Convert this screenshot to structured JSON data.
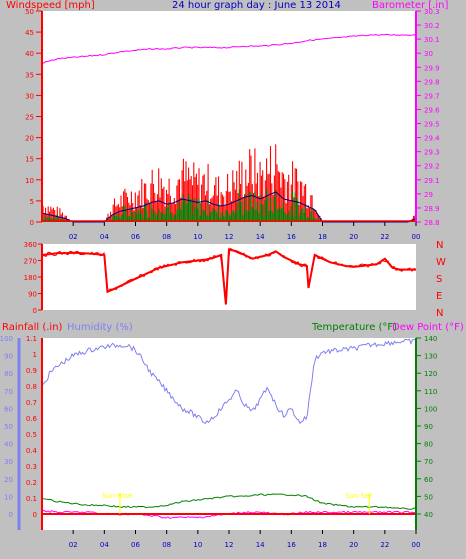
{
  "colors": {
    "background": "#c0c0c0",
    "plot_bg": "#ffffff",
    "windspeed": "#ff0000",
    "gust_fill": "#ff0000",
    "avg_wind": "#000080",
    "gust_green": "#008000",
    "barometer": "#ff00ff",
    "direction": "#ff0000",
    "humidity": "#8080f0",
    "temperature": "#008000",
    "dew_point": "#ff00ff",
    "rainfall": "#ff0000",
    "title": "#0000c0",
    "sun_label": "#ffff00"
  },
  "header": {
    "title": "24 hour graph day : June 13 2014",
    "left_label": "Windspeed [mph]",
    "right_label": "Barometer [.in]"
  },
  "middle": {
    "compass": [
      "N",
      "W",
      "S",
      "E",
      "N"
    ]
  },
  "lower": {
    "rain_label": "Rainfall (.in)",
    "humidity_label": "Humidity (%)",
    "temp_label": "Temperature (°F)",
    "dew_label": "Dew Point (°F)",
    "sun_rise": "Sun Rise",
    "sun_set": "Sun Set"
  },
  "chart_data": [
    {
      "type": "area",
      "title": "24 hour graph day : June 13 2014",
      "ylabel": "Windspeed [mph]",
      "y2label": "Barometer [.in]",
      "ylim": [
        0,
        50
      ],
      "y2lim": [
        28.8,
        30.3
      ],
      "x_ticks": [
        "02",
        "04",
        "06",
        "08",
        "10",
        "12",
        "14",
        "16",
        "18",
        "20",
        "22",
        "00"
      ],
      "y_ticks": [
        0,
        5,
        10,
        15,
        20,
        25,
        30,
        35,
        40,
        45,
        50
      ],
      "y2_ticks": [
        28.8,
        28.9,
        29,
        29.1,
        29.2,
        29.3,
        29.4,
        29.5,
        29.6,
        29.7,
        29.8,
        29.9,
        30,
        30.1,
        30.2,
        30.3
      ],
      "series": [
        {
          "name": "Windspeed [mph]",
          "x": [
            0,
            0.5,
            1,
            1.5,
            2,
            2.5,
            3,
            3.5,
            4,
            4.5,
            5,
            5.5,
            6,
            6.5,
            7,
            7.5,
            8,
            8.5,
            9,
            9.5,
            10,
            10.5,
            11,
            11.5,
            12,
            12.5,
            13,
            13.5,
            14,
            14.5,
            15,
            15.5,
            16,
            16.5,
            17,
            17.5,
            18,
            18.5,
            19,
            19.5,
            20,
            20.5,
            21,
            21.5,
            22,
            22.5,
            23,
            23.5,
            24
          ],
          "y": [
            5,
            4,
            3,
            2,
            0,
            0,
            0,
            0,
            0,
            4,
            6,
            7,
            8,
            9,
            11,
            12,
            10,
            11,
            13,
            12,
            11,
            12,
            10,
            9,
            10,
            12,
            14,
            15,
            13,
            15,
            17,
            13,
            12,
            11,
            9,
            7,
            0,
            0,
            0,
            0,
            0,
            0,
            0,
            0,
            0,
            0,
            0,
            0,
            2
          ]
        },
        {
          "name": "Barometer [.in]",
          "x": [
            0,
            1,
            2,
            3,
            4,
            5,
            6,
            7,
            8,
            9,
            10,
            11,
            12,
            13,
            14,
            15,
            16,
            17,
            18,
            19,
            20,
            21,
            22,
            23,
            24
          ],
          "y": [
            29.93,
            29.96,
            29.97,
            29.98,
            29.99,
            30.01,
            30.02,
            30.03,
            30.03,
            30.04,
            30.04,
            30.04,
            30.04,
            30.05,
            30.05,
            30.06,
            30.07,
            30.09,
            30.1,
            30.11,
            30.12,
            30.13,
            30.13,
            30.13,
            30.13
          ]
        }
      ]
    },
    {
      "type": "line",
      "title": "Wind direction",
      "ylim": [
        0,
        360
      ],
      "y_ticks": [
        0,
        90,
        180,
        270,
        360
      ],
      "series": [
        {
          "name": "Wind direction",
          "x": [
            0,
            0.5,
            1,
            1.5,
            2,
            2.5,
            3,
            3.5,
            4,
            4.2,
            4.5,
            5,
            5.5,
            6,
            6.5,
            7,
            7.5,
            8,
            8.5,
            9,
            9.5,
            10,
            10.5,
            11,
            11.5,
            11.8,
            12,
            12.5,
            13,
            13.5,
            14,
            14.5,
            15,
            15.5,
            16,
            16.5,
            17,
            17.1,
            17.5,
            18,
            18.5,
            19,
            19.5,
            20,
            20.5,
            21,
            21.5,
            22,
            22.5,
            23,
            23.5,
            24
          ],
          "y": [
            300,
            305,
            310,
            310,
            312,
            310,
            308,
            305,
            300,
            100,
            110,
            130,
            150,
            170,
            190,
            210,
            230,
            240,
            250,
            260,
            265,
            270,
            275,
            285,
            300,
            30,
            330,
            320,
            300,
            280,
            290,
            300,
            320,
            290,
            270,
            250,
            240,
            120,
            300,
            280,
            260,
            250,
            240,
            235,
            240,
            245,
            250,
            280,
            230,
            220,
            220,
            220
          ]
        }
      ]
    },
    {
      "type": "line",
      "title": "",
      "ylim": [
        0,
        100
      ],
      "y_ticks": [
        0,
        10,
        20,
        30,
        40,
        50,
        60,
        70,
        80,
        90,
        100
      ],
      "y_ticks_rain": [
        0,
        0.1,
        0.2,
        0.3,
        0.4,
        0.5,
        0.6,
        0.7,
        0.8,
        0.9,
        1,
        1.1
      ],
      "y_ticks_temp": [
        40,
        50,
        60,
        70,
        80,
        90,
        100,
        110,
        120,
        130,
        140
      ],
      "x_ticks": [
        "02",
        "04",
        "06",
        "08",
        "10",
        "12",
        "14",
        "16",
        "18",
        "20",
        "22",
        "00"
      ],
      "series": [
        {
          "name": "Humidity (%)",
          "x": [
            0,
            0.5,
            1,
            2,
            3,
            4,
            5,
            5.5,
            6,
            6.5,
            7,
            7.5,
            8,
            8.5,
            9,
            9.5,
            10,
            10.5,
            11,
            11.5,
            12,
            12.5,
            13,
            13.5,
            14,
            14.5,
            15,
            15.5,
            16,
            16.5,
            17,
            17.5,
            18,
            19,
            20,
            21,
            22,
            23,
            24
          ],
          "y": [
            72,
            80,
            84,
            90,
            93,
            95,
            96,
            96,
            93,
            87,
            80,
            75,
            70,
            65,
            60,
            58,
            55,
            52,
            55,
            60,
            65,
            70,
            62,
            58,
            65,
            72,
            62,
            56,
            60,
            52,
            55,
            88,
            92,
            93,
            94,
            96,
            97,
            98,
            98
          ]
        },
        {
          "name": "Temperature (°F)",
          "x": [
            0,
            1,
            2,
            3,
            4,
            5,
            6,
            7,
            8,
            9,
            10,
            11,
            12,
            13,
            14,
            15,
            16,
            17,
            18,
            19,
            20,
            21,
            22,
            23,
            24
          ],
          "y": [
            49,
            47,
            46,
            45,
            45,
            44,
            44,
            44,
            45,
            47,
            48,
            49,
            50,
            50,
            51,
            51,
            51,
            50,
            46,
            45,
            44,
            44,
            44,
            43,
            43
          ]
        },
        {
          "name": "Dew Point (°F)",
          "x": [
            0,
            1,
            2,
            3,
            4,
            5,
            6,
            7,
            8,
            9,
            10,
            11,
            12,
            13,
            14,
            15,
            16,
            17,
            18,
            19,
            20,
            21,
            22,
            23,
            24
          ],
          "y": [
            42,
            41,
            41,
            41,
            40,
            40,
            40,
            39,
            38,
            38,
            38,
            39,
            40,
            41,
            41,
            40,
            40,
            41,
            41,
            41,
            41,
            41,
            41,
            41,
            41
          ]
        },
        {
          "name": "Rainfall (.in)",
          "x": [
            0,
            24
          ],
          "y": [
            0,
            0
          ]
        }
      ]
    }
  ]
}
